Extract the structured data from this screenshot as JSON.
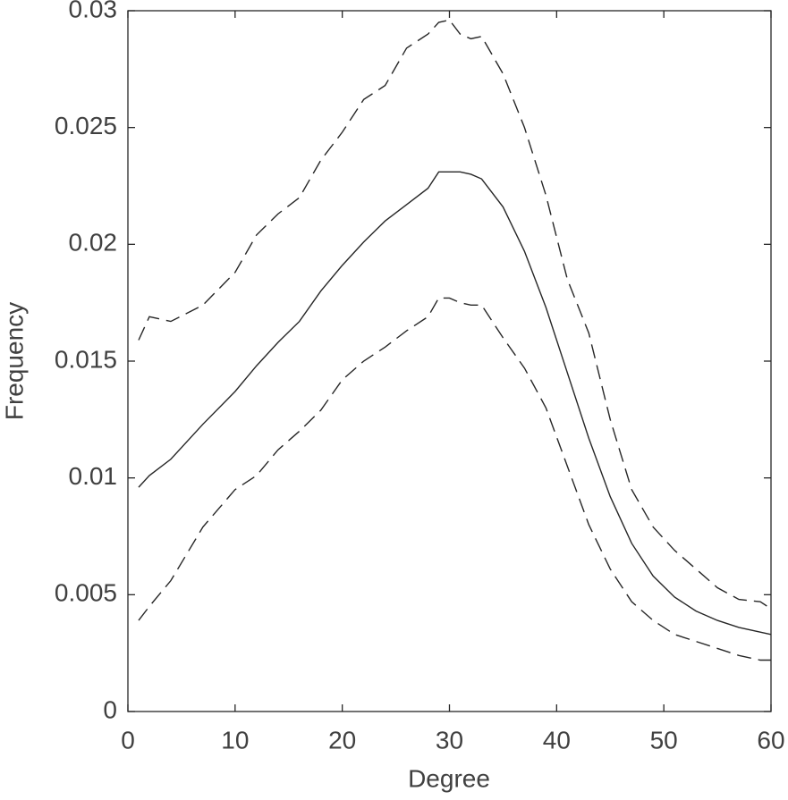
{
  "chart_data": {
    "type": "line",
    "xlabel": "Degree",
    "ylabel": "Frequency",
    "x": [
      1,
      2,
      4,
      7,
      10,
      12,
      14,
      16,
      18,
      20,
      22,
      24,
      26,
      28,
      29,
      30,
      31,
      32,
      33,
      35,
      37,
      39,
      41,
      43,
      45,
      47,
      49,
      51,
      53,
      55,
      57,
      59,
      60
    ],
    "series": [
      {
        "color": "#262626",
        "dashed": false,
        "values": [
          0.0096,
          0.0101,
          0.0108,
          0.0123,
          0.0137,
          0.0148,
          0.0158,
          0.0167,
          0.018,
          0.0191,
          0.0201,
          0.021,
          0.0217,
          0.0224,
          0.0231,
          0.0231,
          0.0231,
          0.023,
          0.0228,
          0.0216,
          0.0197,
          0.0173,
          0.0145,
          0.0117,
          0.0092,
          0.0072,
          0.0058,
          0.0049,
          0.0043,
          0.0039,
          0.0036,
          0.0034,
          0.0033
        ]
      },
      {
        "color": "#262626",
        "dashed": true,
        "values": [
          0.0159,
          0.0169,
          0.0167,
          0.0174,
          0.0188,
          0.0204,
          0.0213,
          0.022,
          0.0236,
          0.0248,
          0.0262,
          0.0268,
          0.0284,
          0.029,
          0.0295,
          0.0296,
          0.029,
          0.0288,
          0.0289,
          0.0273,
          0.025,
          0.0221,
          0.0185,
          0.0162,
          0.0125,
          0.0095,
          0.0079,
          0.0069,
          0.0061,
          0.0053,
          0.0048,
          0.0047,
          0.0044
        ]
      },
      {
        "color": "#262626",
        "dashed": true,
        "values": [
          0.0039,
          0.0045,
          0.0056,
          0.0079,
          0.0095,
          0.0101,
          0.0112,
          0.012,
          0.0129,
          0.0142,
          0.015,
          0.0156,
          0.0163,
          0.0169,
          0.0177,
          0.0177,
          0.0175,
          0.0174,
          0.0174,
          0.016,
          0.0147,
          0.013,
          0.0105,
          0.008,
          0.0061,
          0.0047,
          0.0039,
          0.0033,
          0.003,
          0.0027,
          0.0024,
          0.0022,
          0.0022
        ]
      }
    ],
    "xlim": [
      0,
      60
    ],
    "xticks": [
      0,
      10,
      20,
      30,
      40,
      50,
      60
    ],
    "ylim": [
      0,
      0.03
    ],
    "yticks": [
      0,
      0.005,
      0.01,
      0.015,
      0.02,
      0.025,
      0.03
    ],
    "grid": false,
    "box": true
  }
}
